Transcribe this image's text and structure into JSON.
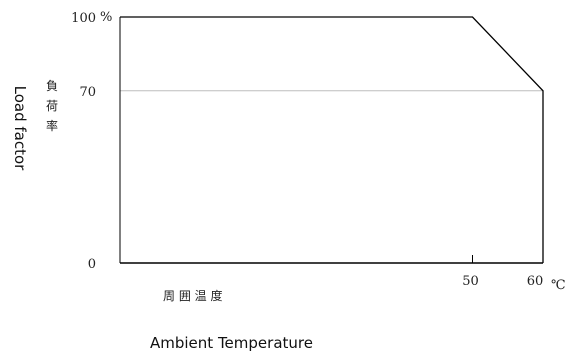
{
  "chart_data": {
    "type": "line",
    "title": "",
    "xlabel": "Ambient Temperature",
    "xlabel_ja": "周 囲 温 度",
    "ylabel": "Load factor",
    "ylabel_ja": "負 荷 率",
    "x_unit": "℃",
    "y_unit": "%",
    "x_ticks": [
      50,
      60
    ],
    "y_ticks": [
      0,
      70,
      100
    ],
    "y_tick_labels": [
      "0",
      "70",
      "100"
    ],
    "x_tick_labels": [
      "50",
      "60"
    ],
    "xlim": [
      0,
      60
    ],
    "ylim": [
      0,
      100
    ],
    "grid": "horizontal line at 70",
    "series": [
      {
        "x": [
          0,
          50,
          60,
          60
        ],
        "y": [
          100,
          100,
          70,
          0
        ]
      }
    ]
  }
}
